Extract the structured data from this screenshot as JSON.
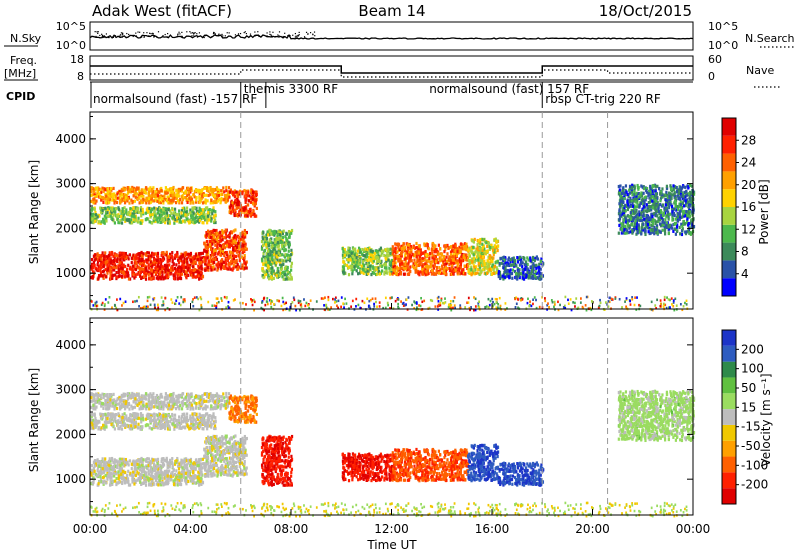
{
  "header": {
    "station": "Adak West (fitACF)",
    "beam": "Beam 14",
    "date": "18/Oct/2015"
  },
  "panels": {
    "nsky_label": "N.Sky",
    "nsky_ticks": [
      "10^5",
      "10^0"
    ],
    "nsearch_label": "N.Search",
    "freq_label": "Freq.",
    "freq_unit": "[MHz]",
    "freq_ticks": [
      "18",
      "8"
    ],
    "nave_ticks": [
      "60",
      "0"
    ],
    "nave_label": "Nave",
    "cpid_label": "CPID"
  },
  "cpid_segments": [
    {
      "label": "normalsound (fast) -157 RF",
      "start": 0.0,
      "end": 6.0
    },
    {
      "label": "themis 3300 RF",
      "start": 6.0,
      "end": 7.0
    },
    {
      "label": "normalsound (fast) 157 RF",
      "start": 7.0,
      "end": 18.0
    },
    {
      "label": "rbsp CT-trig 220 RF",
      "start": 18.0,
      "end": 24.0
    }
  ],
  "axes": {
    "x_ticks": [
      "00:00",
      "04:00",
      "08:00",
      "12:00",
      "16:00",
      "20:00",
      "00:00"
    ],
    "x_label": "Time UT",
    "y_label": "Slant Range [km]",
    "y_ticks": [
      "4000",
      "3000",
      "2000",
      "1000"
    ]
  },
  "colorbars": {
    "power": {
      "label": "Power [dB]",
      "ticks": [
        "28",
        "24",
        "20",
        "16",
        "12",
        "8",
        "4"
      ],
      "colors": [
        "#0000ff",
        "#2a52a8",
        "#3c8a5a",
        "#4cb84c",
        "#a8d440",
        "#ffd200",
        "#ffa000",
        "#ff6000",
        "#ff2000",
        "#e00000"
      ]
    },
    "velocity": {
      "label": "Velocity [m s⁻¹]",
      "ticks": [
        "200",
        "100",
        "50",
        "15",
        "-15",
        "-50",
        "-100",
        "-200"
      ],
      "colors": [
        "#1c34c8",
        "#2e5cc0",
        "#2e8a4a",
        "#60c040",
        "#9adc60",
        "#bdbdbd",
        "#f0c800",
        "#ffa000",
        "#ff6000",
        "#ff2000",
        "#e00000"
      ]
    }
  },
  "chart_data": {
    "type": "heatmap",
    "title": "Adak West (fitACF) Beam 14 18/Oct/2015",
    "xlabel": "Time UT",
    "ylabel": "Slant Range [km]",
    "xlim": [
      0,
      24
    ],
    "ylim": [
      200,
      4600
    ],
    "power_clim": [
      0,
      32
    ],
    "velocity_clim": [
      -250,
      250
    ],
    "echo_regions": [
      {
        "t0": 0.0,
        "t1": 4.5,
        "r0": 900,
        "r1": 1500,
        "power": 28,
        "velocity": 0
      },
      {
        "t0": 4.5,
        "t1": 6.2,
        "r0": 1100,
        "r1": 2000,
        "power": 26,
        "velocity": 0
      },
      {
        "t0": 0.0,
        "t1": 5.0,
        "r0": 2150,
        "r1": 2500,
        "power": 13,
        "velocity": 0
      },
      {
        "t0": 0.0,
        "t1": 5.5,
        "r0": 2600,
        "r1": 2950,
        "power": 21,
        "velocity": 0
      },
      {
        "t0": 5.5,
        "t1": 6.6,
        "r0": 2300,
        "r1": 2900,
        "power": 26,
        "velocity": -120
      },
      {
        "t0": 6.8,
        "t1": 8.0,
        "r0": 900,
        "r1": 2000,
        "power": 12,
        "velocity": -200
      },
      {
        "t0": 10.0,
        "t1": 12.0,
        "r0": 1000,
        "r1": 1600,
        "power": 13,
        "velocity": -200
      },
      {
        "t0": 12.0,
        "t1": 15.0,
        "r0": 1000,
        "r1": 1700,
        "power": 24,
        "velocity": -150
      },
      {
        "t0": 15.0,
        "t1": 16.2,
        "r0": 1000,
        "r1": 1800,
        "power": 16,
        "velocity": 200
      },
      {
        "t0": 16.2,
        "t1": 18.0,
        "r0": 900,
        "r1": 1400,
        "power": 6,
        "velocity": 200
      },
      {
        "t0": 21.0,
        "t1": 24.0,
        "r0": 1900,
        "r1": 3000,
        "power": 7,
        "velocity": 40
      }
    ],
    "ground_scatter_near": {
      "r0": 200,
      "r1": 500
    }
  }
}
